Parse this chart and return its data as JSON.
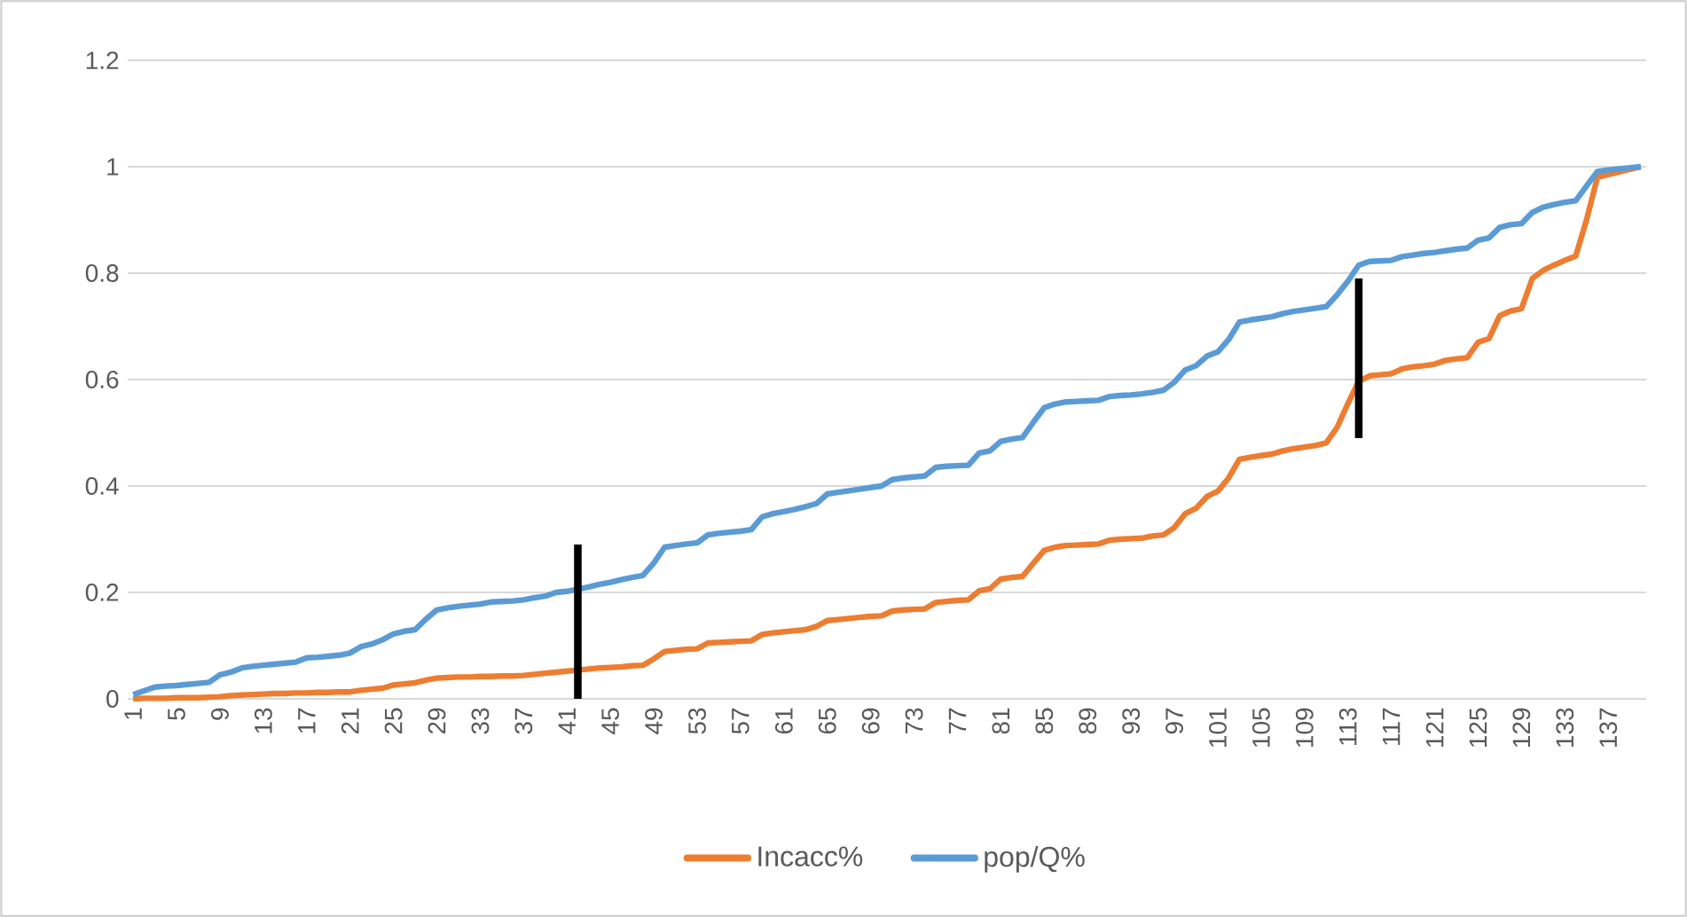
{
  "chart_data": {
    "type": "line",
    "x": [
      1,
      2,
      3,
      4,
      5,
      6,
      7,
      8,
      9,
      10,
      11,
      12,
      13,
      14,
      15,
      16,
      17,
      18,
      19,
      20,
      21,
      22,
      23,
      24,
      25,
      26,
      27,
      28,
      29,
      30,
      31,
      32,
      33,
      34,
      35,
      36,
      37,
      38,
      39,
      40,
      41,
      42,
      43,
      44,
      45,
      46,
      47,
      48,
      49,
      50,
      51,
      52,
      53,
      54,
      55,
      56,
      57,
      58,
      59,
      60,
      61,
      62,
      63,
      64,
      65,
      66,
      67,
      68,
      69,
      70,
      71,
      72,
      73,
      74,
      75,
      76,
      77,
      78,
      79,
      80,
      81,
      82,
      83,
      84,
      85,
      86,
      87,
      88,
      89,
      90,
      91,
      92,
      93,
      94,
      95,
      96,
      97,
      98,
      99,
      100,
      101,
      102,
      103,
      104,
      105,
      106,
      107,
      108,
      109,
      110,
      111,
      112,
      113,
      114,
      115,
      116,
      117,
      118,
      119,
      120,
      121,
      122,
      123,
      124,
      125,
      126,
      127,
      128,
      129,
      130,
      131,
      132,
      133,
      134,
      135,
      136,
      137,
      138,
      139,
      140
    ],
    "xlim": [
      0.5,
      140.5
    ],
    "xticks": [
      1,
      5,
      9,
      13,
      17,
      21,
      25,
      29,
      33,
      37,
      41,
      45,
      49,
      53,
      57,
      61,
      65,
      69,
      73,
      77,
      81,
      85,
      89,
      93,
      97,
      101,
      105,
      109,
      113,
      117,
      121,
      125,
      129,
      133,
      137
    ],
    "ylim": [
      0,
      1.2
    ],
    "yticks": [
      0,
      0.2,
      0.4,
      0.6,
      0.8,
      1,
      1.2
    ],
    "grid": "y",
    "legend": "bottom",
    "line_style": "solid",
    "series": [
      {
        "name": "Incacc%",
        "color": "#ed7d31",
        "values": [
          0,
          0.001,
          0.001,
          0.001,
          0.002,
          0.002,
          0.002,
          0.003,
          0.004,
          0.006,
          0.007,
          0.008,
          0.009,
          0.01,
          0.01,
          0.011,
          0.011,
          0.012,
          0.012,
          0.013,
          0.013,
          0.016,
          0.018,
          0.02,
          0.026,
          0.028,
          0.03,
          0.035,
          0.039,
          0.04,
          0.041,
          0.041,
          0.042,
          0.042,
          0.043,
          0.043,
          0.044,
          0.046,
          0.048,
          0.05,
          0.052,
          0.054,
          0.056,
          0.058,
          0.059,
          0.06,
          0.062,
          0.063,
          0.075,
          0.089,
          0.091,
          0.093,
          0.094,
          0.105,
          0.106,
          0.107,
          0.108,
          0.109,
          0.121,
          0.124,
          0.126,
          0.128,
          0.13,
          0.136,
          0.147,
          0.149,
          0.151,
          0.153,
          0.155,
          0.156,
          0.165,
          0.167,
          0.168,
          0.169,
          0.181,
          0.183,
          0.185,
          0.186,
          0.203,
          0.207,
          0.225,
          0.228,
          0.23,
          0.255,
          0.279,
          0.285,
          0.288,
          0.289,
          0.29,
          0.291,
          0.298,
          0.3,
          0.301,
          0.302,
          0.306,
          0.308,
          0.322,
          0.348,
          0.358,
          0.38,
          0.39,
          0.415,
          0.45,
          0.454,
          0.457,
          0.46,
          0.466,
          0.47,
          0.473,
          0.476,
          0.481,
          0.51,
          0.555,
          0.597,
          0.607,
          0.609,
          0.611,
          0.62,
          0.624,
          0.626,
          0.629,
          0.636,
          0.639,
          0.641,
          0.67,
          0.677,
          0.72,
          0.729,
          0.733,
          0.79,
          0.805,
          0.815,
          0.824,
          0.832,
          0.9,
          0.98,
          0.985,
          0.99,
          0.995,
          1.0
        ]
      },
      {
        "name": "pop/Q%",
        "color": "#5b9bd5",
        "values": [
          0.008,
          0.015,
          0.022,
          0.024,
          0.025,
          0.027,
          0.029,
          0.031,
          0.045,
          0.05,
          0.058,
          0.061,
          0.063,
          0.065,
          0.067,
          0.069,
          0.077,
          0.078,
          0.08,
          0.082,
          0.086,
          0.098,
          0.103,
          0.111,
          0.122,
          0.127,
          0.13,
          0.15,
          0.167,
          0.171,
          0.174,
          0.176,
          0.178,
          0.182,
          0.183,
          0.184,
          0.186,
          0.19,
          0.193,
          0.2,
          0.202,
          0.206,
          0.21,
          0.215,
          0.219,
          0.224,
          0.228,
          0.232,
          0.255,
          0.285,
          0.288,
          0.291,
          0.293,
          0.308,
          0.311,
          0.313,
          0.315,
          0.318,
          0.342,
          0.348,
          0.352,
          0.356,
          0.361,
          0.367,
          0.385,
          0.388,
          0.391,
          0.394,
          0.397,
          0.4,
          0.412,
          0.415,
          0.417,
          0.419,
          0.435,
          0.437,
          0.438,
          0.439,
          0.462,
          0.466,
          0.484,
          0.488,
          0.491,
          0.52,
          0.547,
          0.554,
          0.558,
          0.559,
          0.56,
          0.561,
          0.568,
          0.57,
          0.571,
          0.573,
          0.576,
          0.58,
          0.595,
          0.618,
          0.626,
          0.644,
          0.652,
          0.675,
          0.708,
          0.712,
          0.715,
          0.718,
          0.724,
          0.728,
          0.731,
          0.734,
          0.737,
          0.759,
          0.785,
          0.815,
          0.822,
          0.823,
          0.824,
          0.831,
          0.834,
          0.837,
          0.839,
          0.842,
          0.845,
          0.847,
          0.862,
          0.866,
          0.886,
          0.891,
          0.893,
          0.914,
          0.924,
          0.929,
          0.933,
          0.936,
          0.964,
          0.991,
          0.994,
          0.996,
          0.998,
          1.0
        ]
      },
      {
        "type": "bar",
        "color": "#000000",
        "x": [
          42,
          114
        ],
        "base": [
          0,
          0.49
        ],
        "values": [
          0.29,
          0.3
        ]
      }
    ]
  }
}
